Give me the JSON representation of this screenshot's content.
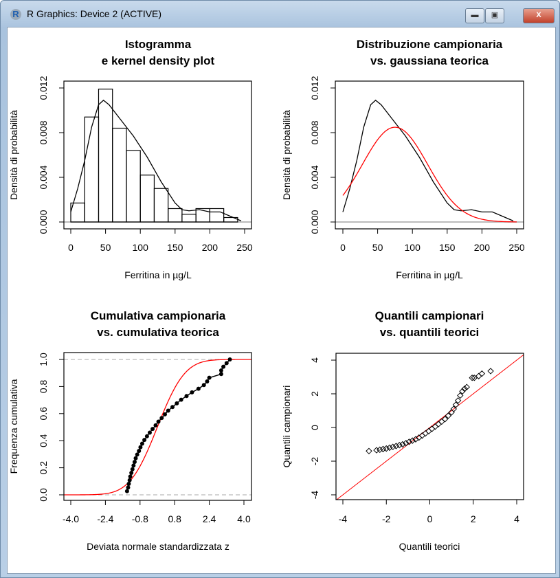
{
  "window": {
    "title": "R Graphics: Device 2 (ACTIVE)",
    "icon": "r-logo-icon",
    "minimize": "▬",
    "maximize": "▣",
    "close": "X"
  },
  "panels": [
    {
      "title1": "Istogramma",
      "title2": "e kernel density plot",
      "xlabel": "Ferritina in µg/L",
      "ylabel": "Densità di probabilità",
      "xticks": [
        "0",
        "50",
        "100",
        "150",
        "200",
        "250"
      ],
      "yticks": [
        "0.000",
        "0.004",
        "0.008",
        "0.012"
      ]
    },
    {
      "title1": "Distribuzione campionaria",
      "title2": "vs. gaussiana teorica",
      "xlabel": "Ferritina in µg/L",
      "ylabel": "Densità di probabilità",
      "xticks": [
        "0",
        "50",
        "100",
        "150",
        "200",
        "250"
      ],
      "yticks": [
        "0.000",
        "0.004",
        "0.008",
        "0.012"
      ]
    },
    {
      "title1": "Cumulativa campionaria",
      "title2": "vs. cumulativa teorica",
      "xlabel": "Deviata normale standardizzata z",
      "ylabel": "Frequenza cumulativa",
      "xticks": [
        "-4.0",
        "-2.4",
        "-0.8",
        "0.8",
        "2.4",
        "4.0"
      ],
      "yticks": [
        "0.0",
        "0.2",
        "0.4",
        "0.6",
        "0.8",
        "1.0"
      ]
    },
    {
      "title1": "Quantili campionari",
      "title2": "vs. quantili teorici",
      "xlabel": "Quantili teorici",
      "ylabel": "Quantili campionari",
      "xticks": [
        "-4",
        "-2",
        "0",
        "2",
        "4"
      ],
      "yticks": [
        "-4",
        "-2",
        "0",
        "2",
        "4"
      ]
    }
  ],
  "chart_data": [
    {
      "type": "bar",
      "subtype": "histogram+density",
      "xlim": [
        0,
        250
      ],
      "ylim": [
        0,
        0.012
      ],
      "bin_edges": [
        0,
        20,
        40,
        60,
        80,
        100,
        120,
        140,
        160,
        180,
        200,
        220,
        240
      ],
      "values": [
        0.0017,
        0.0094,
        0.0119,
        0.0084,
        0.0064,
        0.0042,
        0.003,
        0.0012,
        0.0007,
        0.0012,
        0.0012,
        0.0004
      ],
      "density": {
        "x": [
          0,
          10,
          20,
          30,
          40,
          47,
          55,
          70,
          90,
          110,
          130,
          150,
          160,
          170,
          185,
          200,
          215,
          230,
          245
        ],
        "y": [
          0.0009,
          0.003,
          0.0055,
          0.0085,
          0.0105,
          0.0109,
          0.0105,
          0.0093,
          0.0077,
          0.0058,
          0.0036,
          0.0017,
          0.0011,
          0.001,
          0.0011,
          0.0009,
          0.0009,
          0.0005,
          0.0001
        ]
      }
    },
    {
      "type": "line",
      "xlim": [
        0,
        250
      ],
      "ylim": [
        0,
        0.012
      ],
      "series": [
        {
          "color": "#000000",
          "x": [
            0,
            10,
            20,
            30,
            40,
            47,
            55,
            70,
            90,
            110,
            130,
            150,
            160,
            170,
            185,
            200,
            215,
            230,
            245
          ],
          "y": [
            0.0009,
            0.003,
            0.0055,
            0.0085,
            0.0105,
            0.0109,
            0.0105,
            0.0093,
            0.0077,
            0.0058,
            0.0036,
            0.0017,
            0.0011,
            0.001,
            0.0011,
            0.0009,
            0.0009,
            0.0005,
            0.0001
          ]
        },
        {
          "color": "#ff0000",
          "distribution": "normal",
          "mean": 75,
          "sd": 47
        }
      ]
    },
    {
      "type": "line",
      "subtype": "ecdf",
      "xlim": [
        -4,
        4
      ],
      "ylim": [
        0,
        1
      ],
      "reference_lines": [
        0,
        1
      ],
      "sample_color": "#000000",
      "theoretical_color": "#ff0000",
      "theoretical": "normal-cdf"
    },
    {
      "type": "scatter",
      "subtype": "qq",
      "xlim": [
        -4,
        4
      ],
      "ylim": [
        -4,
        4
      ],
      "line_color": "#ff0000",
      "points": [
        [
          -2.8,
          -1.4
        ],
        [
          -2.45,
          -1.35
        ],
        [
          -2.3,
          -1.32
        ],
        [
          -2.15,
          -1.28
        ],
        [
          -2.0,
          -1.25
        ],
        [
          -1.85,
          -1.2
        ],
        [
          -1.7,
          -1.15
        ],
        [
          -1.55,
          -1.1
        ],
        [
          -1.4,
          -1.05
        ],
        [
          -1.25,
          -1.0
        ],
        [
          -1.1,
          -0.93
        ],
        [
          -0.95,
          -0.85
        ],
        [
          -0.8,
          -0.78
        ],
        [
          -0.65,
          -0.7
        ],
        [
          -0.5,
          -0.6
        ],
        [
          -0.35,
          -0.48
        ],
        [
          -0.2,
          -0.35
        ],
        [
          -0.05,
          -0.22
        ],
        [
          0.1,
          -0.08
        ],
        [
          0.25,
          0.05
        ],
        [
          0.4,
          0.2
        ],
        [
          0.55,
          0.35
        ],
        [
          0.7,
          0.5
        ],
        [
          0.85,
          0.7
        ],
        [
          1.0,
          0.9
        ],
        [
          1.1,
          1.1
        ],
        [
          1.2,
          1.35
        ],
        [
          1.3,
          1.6
        ],
        [
          1.4,
          1.9
        ],
        [
          1.5,
          2.15
        ],
        [
          1.6,
          2.3
        ],
        [
          1.7,
          2.4
        ],
        [
          1.95,
          2.95
        ],
        [
          2.05,
          2.95
        ],
        [
          2.25,
          3.05
        ],
        [
          2.4,
          3.2
        ],
        [
          2.8,
          3.35
        ]
      ]
    }
  ]
}
